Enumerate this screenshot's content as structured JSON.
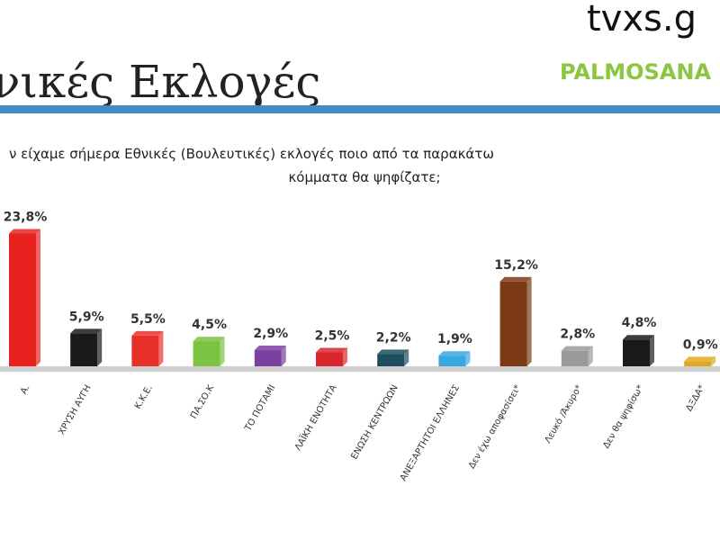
{
  "chart_data": {
    "type": "bar",
    "title": "νικές Εκλογές",
    "logo": "tvxs.g",
    "brand": "PALMOSANA",
    "subtitle": [
      "ν είχαμε σήμερα Εθνικές (Βουλευτικές) εκλογές ποιο από τα παρακάτω",
      "κόμματα θα ψηφίζατε;"
    ],
    "categories": [
      "Α.",
      "ΧΡΥΣΗ ΑΥΓΗ",
      "Κ.Κ.Ε.",
      "ΠΑ.ΣΟ.Κ",
      "ΤΟ ΠΟΤΑΜΙ",
      "ΛΑΪΚΗ ΕΝΟΤΗΤΑ",
      "ΕΝΩΣΗ ΚΕΝΤΡΩΩΝ",
      "ΑΝΕΞΑΡΤΗΤΟΙ ΕΛΛΗΝΕΣ",
      "Δεν έχω αποφασίσει*",
      "Λευκό /Άκυρο*",
      "Δεν θα ψηφίσω*",
      "ΔΞΔΑ*"
    ],
    "values": [
      23.8,
      5.9,
      5.5,
      4.5,
      2.9,
      2.5,
      2.2,
      1.9,
      15.2,
      2.8,
      4.8,
      0.9
    ],
    "value_labels": [
      "23,8%",
      "5,9%",
      "5,5%",
      "4,5%",
      "2,9%",
      "2,5%",
      "2,2%",
      "1,9%",
      "15,2%",
      "2,8%",
      "4,8%",
      "0,9%"
    ],
    "colors": [
      "#e8231f",
      "#1a1a1a",
      "#e8302a",
      "#7cc243",
      "#7b3fa0",
      "#d9262b",
      "#1d4d5f",
      "#3aa8e0",
      "#7b3a15",
      "#9a9a9a",
      "#1a1a1a",
      "#e0a820"
    ]
  }
}
